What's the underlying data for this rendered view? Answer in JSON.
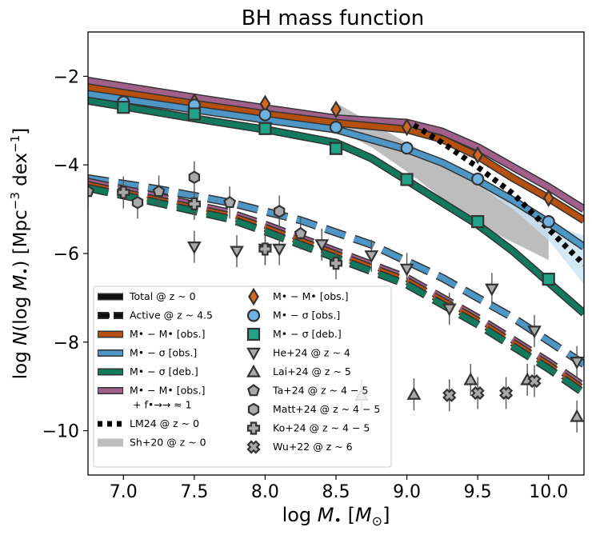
{
  "chart_data": {
    "type": "line",
    "title": "BH mass function",
    "xlabel": "log M• [M⊙]",
    "ylabel": "log N(log M•) [Mpc⁻³ dex⁻¹]",
    "xlim": [
      6.75,
      10.25
    ],
    "ylim": [
      -11.0,
      -1.0
    ],
    "xticks": [
      7.0,
      7.5,
      8.0,
      8.5,
      9.0,
      9.5,
      10.0
    ],
    "xtick_labels": [
      "7.0",
      "7.5",
      "8.0",
      "8.5",
      "9.0",
      "9.5",
      "10.0"
    ],
    "yticks": [
      -2,
      -4,
      -6,
      -8,
      -10
    ],
    "ytick_labels": [
      "−2",
      "−4",
      "−6",
      "−8",
      "−10"
    ],
    "colors": {
      "orange": "#b5500e",
      "blue": "#4d96c6",
      "green": "#12795c",
      "purple": "#a0608a",
      "outline": "#333333",
      "band": "#bdbdbd",
      "lightblue_band": "#c9e2f2",
      "peach_band": "#f5c7a6"
    },
    "series": [
      {
        "name": "M•−M• [obs.] + f→≈ 1 (z~0)",
        "style": "solid",
        "color": "#a0608a",
        "x": [
          6.75,
          7.5,
          8.0,
          8.5,
          9.0,
          9.25,
          9.5,
          9.75,
          10.0,
          10.25
        ],
        "y": [
          -2.1,
          -2.48,
          -2.72,
          -2.95,
          -3.05,
          -3.25,
          -3.6,
          -4.05,
          -4.5,
          -5.0
        ]
      },
      {
        "name": "M•−M• [obs.] (z~0)",
        "style": "solid",
        "color": "#b5500e",
        "x": [
          6.75,
          7.5,
          8.0,
          8.5,
          9.0,
          9.25,
          9.5,
          9.75,
          10.0,
          10.25
        ],
        "y": [
          -2.25,
          -2.62,
          -2.85,
          -3.05,
          -3.2,
          -3.42,
          -3.8,
          -4.3,
          -4.75,
          -5.25
        ]
      },
      {
        "name": "M•−σ [obs.] (z~0)",
        "style": "solid",
        "color": "#4d96c6",
        "x": [
          6.75,
          7.5,
          8.0,
          8.5,
          9.0,
          9.25,
          9.5,
          9.75,
          10.0,
          10.25
        ],
        "y": [
          -2.4,
          -2.75,
          -2.98,
          -3.2,
          -3.65,
          -3.95,
          -4.35,
          -4.8,
          -5.3,
          -5.85
        ]
      },
      {
        "name": "M•−σ [deb.] (z~0)",
        "style": "solid",
        "color": "#12795c",
        "x": [
          6.75,
          7.5,
          8.0,
          8.5,
          8.75,
          9.0,
          9.25,
          9.5,
          9.75,
          10.0,
          10.25
        ],
        "y": [
          -2.55,
          -2.95,
          -3.2,
          -3.5,
          -3.85,
          -4.35,
          -4.85,
          -5.35,
          -5.95,
          -6.65,
          -7.35
        ]
      },
      {
        "name": "M•−σ [obs.] (z~4.5)",
        "style": "dashed",
        "color": "#4d96c6",
        "x": [
          6.75,
          7.25,
          7.75,
          8.25,
          8.75,
          9.25,
          9.75,
          10.25
        ],
        "y": [
          -4.3,
          -4.55,
          -4.85,
          -5.25,
          -5.8,
          -6.55,
          -7.45,
          -8.5
        ]
      },
      {
        "name": "M•−M• [obs.] + f→≈ 1 (z~4.5)",
        "style": "dashed",
        "color": "#a0608a",
        "x": [
          6.75,
          7.25,
          7.75,
          8.0,
          8.5,
          9.0,
          9.5,
          10.0,
          10.25
        ],
        "y": [
          -4.38,
          -4.72,
          -5.08,
          -5.35,
          -5.95,
          -6.55,
          -7.45,
          -8.45,
          -9.0
        ]
      },
      {
        "name": "M•−M• [obs.] (z~4.5)",
        "style": "dashed",
        "color": "#b5500e",
        "x": [
          6.75,
          7.25,
          7.75,
          8.0,
          8.5,
          9.0,
          9.5,
          10.0,
          10.25
        ],
        "y": [
          -4.45,
          -4.8,
          -5.15,
          -5.42,
          -6.02,
          -6.62,
          -7.52,
          -8.52,
          -9.08
        ]
      },
      {
        "name": "M•−σ [deb.] (z~4.5)",
        "style": "dashed",
        "color": "#12795c",
        "x": [
          6.75,
          7.25,
          7.75,
          8.0,
          8.5,
          9.0,
          9.5,
          10.0,
          10.25
        ],
        "y": [
          -4.52,
          -4.86,
          -5.22,
          -5.5,
          -6.1,
          -6.7,
          -7.6,
          -8.6,
          -9.15
        ]
      },
      {
        "name": "LM24 @ z~0",
        "style": "dotted",
        "color": "#000000",
        "x": [
          9.05,
          9.25,
          9.5,
          9.75,
          10.0,
          10.25
        ],
        "y": [
          -3.1,
          -3.5,
          -4.05,
          -4.65,
          -5.45,
          -6.25
        ]
      }
    ],
    "bands": [
      {
        "name": "Sh+20 @ z~0",
        "upper": {
          "x": [
            8.5,
            8.75,
            9.0,
            9.25,
            9.5,
            9.75,
            10.0
          ],
          "y": [
            -2.6,
            -3.05,
            -3.5,
            -3.95,
            -4.4,
            -4.85,
            -5.3
          ]
        },
        "lower": {
          "x": [
            8.5,
            8.75,
            9.0,
            9.25,
            9.5,
            9.75,
            10.0
          ],
          "y": [
            -3.2,
            -3.6,
            -4.15,
            -4.75,
            -5.35,
            -5.75,
            -6.15
          ]
        }
      },
      {
        "name": "blue uncertainty",
        "upper": {
          "x": [
            9.5,
            9.75,
            10.0,
            10.25
          ],
          "y": [
            -4.3,
            -4.8,
            -5.3,
            -5.6
          ]
        },
        "lower": {
          "x": [
            9.5,
            9.75,
            10.0,
            10.25
          ],
          "y": [
            -4.45,
            -5.0,
            -5.7,
            -6.7
          ]
        }
      }
    ],
    "points": [
      {
        "name": "M•−M• [obs.]",
        "marker": "diamond",
        "color": "#d2691e",
        "x": [
          7.5,
          8.0,
          8.5,
          9.0,
          9.5,
          10.0
        ],
        "y": [
          -2.58,
          -2.62,
          -2.75,
          -3.15,
          -3.78,
          -4.75
        ]
      },
      {
        "name": "M•−σ [obs.]",
        "marker": "circle",
        "color": "#6fb2e0",
        "x": [
          7.0,
          7.5,
          8.0,
          8.5,
          9.0,
          9.5,
          10.0
        ],
        "y": [
          -2.58,
          -2.65,
          -2.87,
          -3.15,
          -3.62,
          -4.32,
          -5.28
        ]
      },
      {
        "name": "M•−σ [deb.]",
        "marker": "square",
        "color": "#20a386",
        "x": [
          7.0,
          7.5,
          8.0,
          8.5,
          9.0,
          9.5,
          10.0
        ],
        "y": [
          -2.7,
          -2.85,
          -3.18,
          -3.63,
          -4.33,
          -5.28,
          -6.58
        ]
      },
      {
        "name": "He+24 @ z~4",
        "marker": "triangle-down",
        "color": "#a9a9a9",
        "x": [
          7.5,
          7.8,
          8.0,
          8.1,
          8.4,
          8.75,
          9.0,
          9.3,
          9.6,
          9.9,
          10.2
        ],
        "y": [
          -5.85,
          -5.95,
          -5.9,
          -5.9,
          -5.8,
          -6.05,
          -6.35,
          -7.25,
          -6.8,
          -7.75,
          -8.45
        ]
      },
      {
        "name": "Lai+24 @ z~5",
        "marker": "triangle-up",
        "color": "#a9a9a9",
        "x": [
          8.68,
          9.05,
          9.45,
          9.85,
          10.2
        ],
        "y": [
          -9.2,
          -9.18,
          -8.85,
          -8.85,
          -9.68
        ]
      },
      {
        "name": "Ta+24 @ z~4−5",
        "marker": "pentagon",
        "color": "#a9a9a9",
        "x": [
          6.75,
          7.25,
          7.75,
          8.25
        ],
        "y": [
          -4.6,
          -4.6,
          -4.85,
          -5.55
        ]
      },
      {
        "name": "Matt+24 @ z~4−5",
        "marker": "hexagon",
        "color": "#a9a9a9",
        "x": [
          7.1,
          7.5,
          8.1
        ],
        "y": [
          -4.85,
          -4.28,
          -5.05
        ]
      },
      {
        "name": "Ko+24 @ z~4−5",
        "marker": "plus",
        "color": "#a9a9a9",
        "x": [
          7.0,
          7.5,
          8.0,
          8.5
        ],
        "y": [
          -4.62,
          -4.88,
          -5.9,
          -6.22
        ]
      },
      {
        "name": "Wu+22 @ z~6",
        "marker": "x",
        "color": "#a9a9a9",
        "x": [
          9.3,
          9.5,
          9.7,
          9.9
        ],
        "y": [
          -9.2,
          -9.15,
          -9.15,
          -8.88
        ]
      }
    ],
    "legend": {
      "placement": "lower-left",
      "col1": [
        {
          "label": "Total @ z ~ 0",
          "kind": "line-solid",
          "color": "#111111"
        },
        {
          "label": "Active @ z ~ 4.5",
          "kind": "line-dashed",
          "color": "#111111"
        },
        {
          "label": "M• − M• [obs.]",
          "kind": "line-solid",
          "color": "#b5500e"
        },
        {
          "label": "M• − σ [obs.]",
          "kind": "line-solid",
          "color": "#4d96c6"
        },
        {
          "label": "M• − σ [deb.]",
          "kind": "line-solid",
          "color": "#12795c"
        },
        {
          "label": "M• − M• [obs.]",
          "label2": "+ f•→→ ≈ 1",
          "kind": "line-solid",
          "color": "#a0608a"
        },
        {
          "label": "LM24 @ z ~ 0",
          "kind": "line-dotted",
          "color": "#000000"
        },
        {
          "label": "Sh+20 @ z ~ 0",
          "kind": "patch",
          "color": "#bdbdbd"
        }
      ],
      "col2": [
        {
          "label": "M• − M• [obs.]",
          "kind": "diamond",
          "color": "#d2691e"
        },
        {
          "label": "M• − σ [obs.]",
          "kind": "circle",
          "color": "#6fb2e0"
        },
        {
          "label": "M• − σ [deb.]",
          "kind": "square",
          "color": "#20a386"
        },
        {
          "label": "He+24 @ z ~ 4",
          "kind": "triangle-down",
          "color": "#a9a9a9"
        },
        {
          "label": "Lai+24 @ z ~ 5",
          "kind": "triangle-up",
          "color": "#a9a9a9"
        },
        {
          "label": "Ta+24 @ z ~ 4 − 5",
          "kind": "pentagon",
          "color": "#a9a9a9"
        },
        {
          "label": "Matt+24 @ z ~ 4 − 5",
          "kind": "hexagon",
          "color": "#a9a9a9"
        },
        {
          "label": "Ko+24 @ z ~ 4 − 5",
          "kind": "plus",
          "color": "#a9a9a9"
        },
        {
          "label": "Wu+22 @ z ~ 6",
          "kind": "x",
          "color": "#a9a9a9"
        }
      ]
    }
  }
}
